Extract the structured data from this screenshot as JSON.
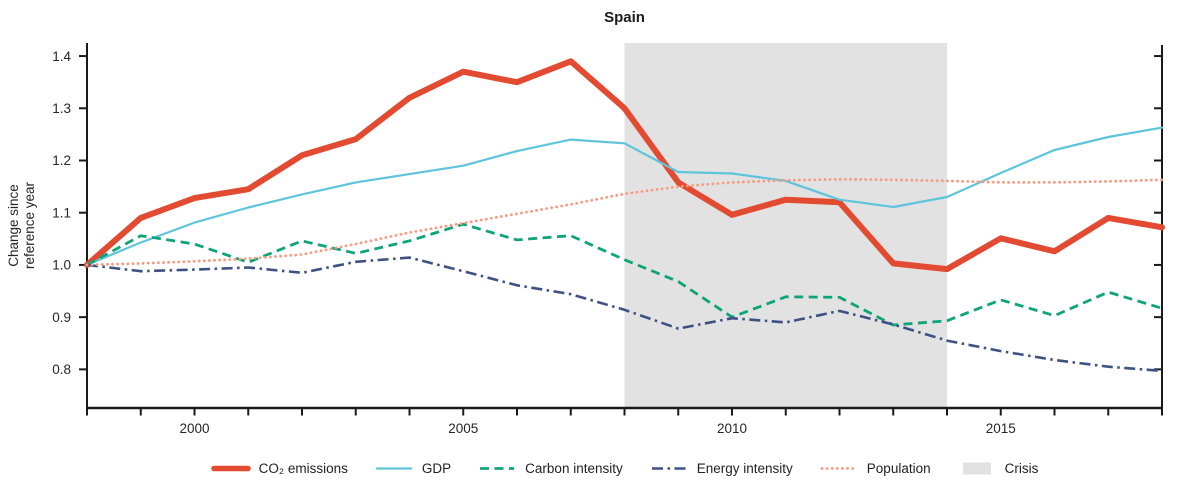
{
  "title": "Spain",
  "y_axis": {
    "label_line1": "Change since",
    "label_line2": "reference year",
    "tick_labels": [
      "0.8",
      "0.9",
      "1.0",
      "1.1",
      "1.2",
      "1.3",
      "1.4"
    ]
  },
  "x_axis": {
    "tick_labels": [
      "2000",
      "2005",
      "2010",
      "2015"
    ],
    "tick_years": [
      2000,
      2005,
      2010,
      2015
    ]
  },
  "chart_data": {
    "type": "line",
    "title": "Spain",
    "ylabel": "Change since reference year",
    "xlim": [
      1998,
      2018
    ],
    "ylim": [
      0.726,
      1.425
    ],
    "y_ticks": [
      0.8,
      0.9,
      1.0,
      1.1,
      1.2,
      1.3,
      1.4
    ],
    "x": [
      1998,
      1999,
      2000,
      2001,
      2002,
      2003,
      2004,
      2005,
      2006,
      2007,
      2008,
      2009,
      2010,
      2011,
      2012,
      2013,
      2014,
      2015,
      2016,
      2017,
      2018
    ],
    "series": [
      {
        "name": "CO₂ emissions",
        "color": "#e24b31",
        "style": "solid",
        "width": 6.0,
        "values": [
          1.0,
          1.09,
          1.128,
          1.145,
          1.21,
          1.241,
          1.32,
          1.37,
          1.35,
          1.39,
          1.3,
          1.158,
          1.096,
          1.125,
          1.12,
          1.003,
          0.992,
          1.051,
          1.026,
          1.09,
          1.072
        ]
      },
      {
        "name": "GDP",
        "color": "#5ec4dc",
        "style": "solid",
        "width": 2.2,
        "values": [
          1.0,
          1.043,
          1.081,
          1.11,
          1.135,
          1.158,
          1.174,
          1.19,
          1.218,
          1.24,
          1.233,
          1.178,
          1.175,
          1.161,
          1.125,
          1.111,
          1.13,
          1.176,
          1.22,
          1.245,
          1.263
        ]
      },
      {
        "name": "Carbon intensity",
        "color": "#0ea47a",
        "style": "dashed",
        "width": 2.8,
        "values": [
          1.0,
          1.056,
          1.04,
          1.005,
          1.046,
          1.022,
          1.046,
          1.078,
          1.048,
          1.056,
          1.01,
          0.968,
          0.9,
          0.939,
          0.938,
          0.885,
          0.893,
          0.933,
          0.903,
          0.948,
          0.917
        ]
      },
      {
        "name": "Energy intensity",
        "color": "#3d5184",
        "style": "dashdot",
        "width": 2.6,
        "values": [
          1.0,
          0.988,
          0.991,
          0.995,
          0.985,
          1.006,
          1.014,
          0.988,
          0.961,
          0.944,
          0.914,
          0.878,
          0.898,
          0.89,
          0.912,
          0.886,
          0.855,
          0.835,
          0.818,
          0.805,
          0.797
        ]
      },
      {
        "name": "Population",
        "color": "#f89a80",
        "style": "dotted",
        "width": 2.8,
        "values": [
          1.0,
          1.003,
          1.007,
          1.012,
          1.02,
          1.04,
          1.062,
          1.08,
          1.098,
          1.116,
          1.136,
          1.15,
          1.158,
          1.162,
          1.164,
          1.163,
          1.161,
          1.158,
          1.158,
          1.16,
          1.163
        ]
      }
    ],
    "crisis_band": {
      "label": "Crisis",
      "color": "#e2e2e2",
      "x_start": 2008,
      "x_end": 2014
    },
    "legend_position": "bottom",
    "grid": false
  }
}
